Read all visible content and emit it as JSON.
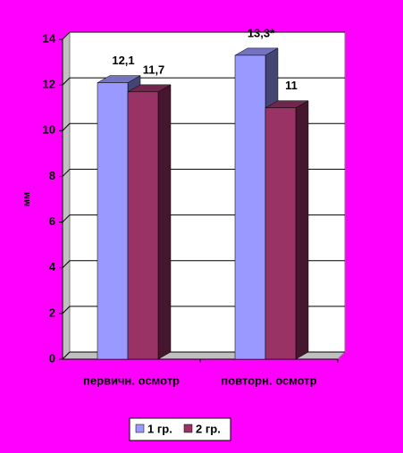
{
  "chart_data": {
    "type": "bar3d",
    "y_label": "мм",
    "categories": [
      "первичн. осмотр",
      "повторн. осмотр"
    ],
    "series": [
      {
        "name": "1 гр.",
        "color": "#9999ff",
        "values": [
          12.1,
          13.3
        ],
        "value_labels": [
          "12,1",
          "13,3*"
        ]
      },
      {
        "name": "2 гр.",
        "color": "#993366",
        "values": [
          11.7,
          11
        ],
        "value_labels": [
          "11,7",
          "11"
        ]
      }
    ],
    "ylim": [
      0,
      14
    ],
    "yticks": [
      0,
      2,
      4,
      6,
      8,
      10,
      12,
      14
    ],
    "grid": true,
    "legend": "bottom"
  }
}
